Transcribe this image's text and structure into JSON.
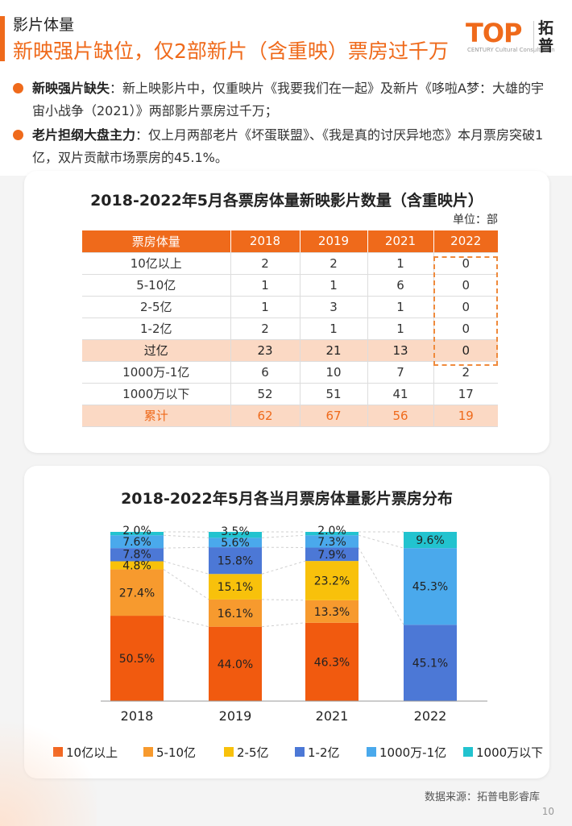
{
  "header": {
    "section": "影片体量",
    "headline": "新映强片缺位，仅2部新片（含重映）票房过千万",
    "logo_text": "TOP",
    "logo_sub": "CENTURY Cultural Consultation",
    "logo_cn": "拓普",
    "accent_color": "#ef6a1b"
  },
  "bullets": [
    {
      "bold": "新映强片缺失",
      "text": "：新上映影片中，仅重映片《我要我们在一起》及新片《哆啦A梦：大雄的宇宙小战争（2021）》两部影片票房过千万；"
    },
    {
      "bold": "老片担纲大盘主力",
      "text": "：仅上月两部老片《坏蛋联盟》、《我是真的讨厌异地恋》本月票房突破1亿，双片贡献市场票房的45.1%。"
    }
  ],
  "table_chart": {
    "title": "2018-2022年5月各票房体量新映影片数量（含重映片）",
    "unit": "单位：部",
    "header": [
      "票房体量",
      "2018",
      "2019",
      "2021",
      "2022"
    ],
    "rows": [
      [
        "10亿以上",
        "2",
        "2",
        "1",
        "0"
      ],
      [
        "5-10亿",
        "1",
        "1",
        "6",
        "0"
      ],
      [
        "2-5亿",
        "1",
        "3",
        "1",
        "0"
      ],
      [
        "1-2亿",
        "2",
        "1",
        "1",
        "0"
      ],
      [
        "过亿",
        "23",
        "21",
        "13",
        "0"
      ],
      [
        "1000万-1亿",
        "6",
        "10",
        "7",
        "2"
      ],
      [
        "1000万以下",
        "52",
        "51",
        "41",
        "17"
      ],
      [
        "累计",
        "62",
        "67",
        "56",
        "19"
      ]
    ]
  },
  "chart_data": {
    "type": "bar",
    "stacked": true,
    "title": "2018-2022年5月各当月票房体量影片票房分布",
    "categories": [
      "2018",
      "2019",
      "2021",
      "2022"
    ],
    "series": [
      {
        "name": "10亿以上",
        "color": "#f15a0f",
        "values": [
          50.5,
          44.0,
          46.3,
          0
        ]
      },
      {
        "name": "5-10亿",
        "color": "#f79a2e",
        "values": [
          27.4,
          16.1,
          13.3,
          0
        ]
      },
      {
        "name": "2-5亿",
        "color": "#f8c10b",
        "values": [
          4.8,
          15.1,
          23.2,
          0
        ]
      },
      {
        "name": "1-2亿",
        "color": "#4c78d6",
        "values": [
          7.8,
          15.8,
          7.9,
          45.1
        ]
      },
      {
        "name": "1000万-1亿",
        "color": "#4aa9ec",
        "values": [
          7.6,
          5.6,
          7.3,
          45.3
        ]
      },
      {
        "name": "1000万以下",
        "color": "#22c3cf",
        "values": [
          2.0,
          3.5,
          2.0,
          9.6
        ]
      }
    ],
    "ylim": [
      0,
      100
    ],
    "legend": "bottom"
  },
  "footer": {
    "source": "数据来源：拓普电影睿库",
    "page": "10"
  }
}
